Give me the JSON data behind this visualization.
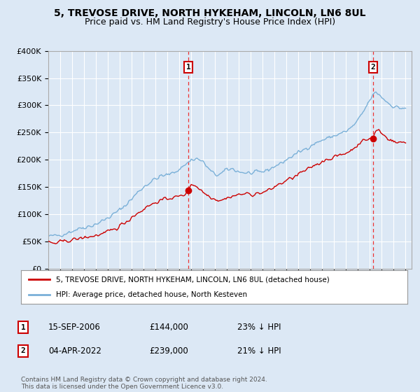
{
  "title": "5, TREVOSE DRIVE, NORTH HYKEHAM, LINCOLN, LN6 8UL",
  "subtitle": "Price paid vs. HM Land Registry's House Price Index (HPI)",
  "bg_color": "#dce8f5",
  "plot_bg_color": "#dce8f5",
  "grid_color": "#ffffff",
  "ylim": [
    0,
    400000
  ],
  "yticks": [
    0,
    50000,
    100000,
    150000,
    200000,
    250000,
    300000,
    350000,
    400000
  ],
  "ytick_labels": [
    "£0",
    "£50K",
    "£100K",
    "£150K",
    "£200K",
    "£250K",
    "£300K",
    "£350K",
    "£400K"
  ],
  "hpi_color": "#7ab0d8",
  "red_color": "#cc0000",
  "vline_color": "#ee3333",
  "marker1_x": 2006.75,
  "marker1_y": 144000,
  "marker2_x": 2022.25,
  "marker2_y": 239000,
  "legend_line1": "5, TREVOSE DRIVE, NORTH HYKEHAM, LINCOLN, LN6 8UL (detached house)",
  "legend_line2": "HPI: Average price, detached house, North Kesteven",
  "annotation_rows": [
    {
      "num": "1",
      "date": "15-SEP-2006",
      "price": "£144,000",
      "change": "23% ↓ HPI"
    },
    {
      "num": "2",
      "date": "04-APR-2022",
      "price": "£239,000",
      "change": "21% ↓ HPI"
    }
  ],
  "footer": "Contains HM Land Registry data © Crown copyright and database right 2024.\nThis data is licensed under the Open Government Licence v3.0.",
  "xmin": 1995,
  "xmax": 2025.5
}
